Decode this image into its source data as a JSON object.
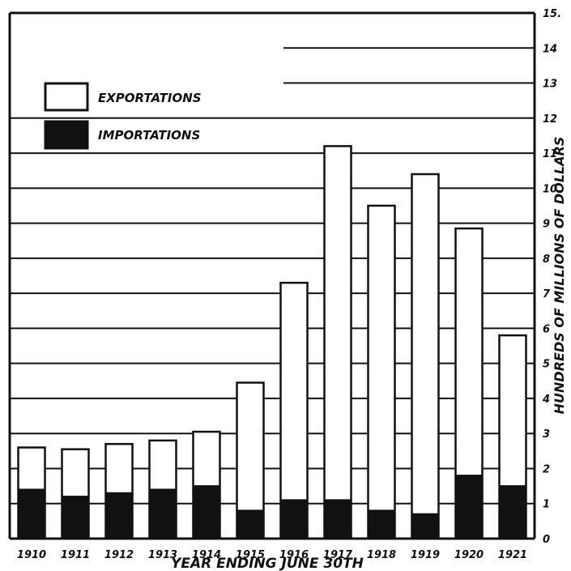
{
  "chart_data": {
    "type": "bar",
    "stacked": true,
    "categories": [
      "1910",
      "1911",
      "1912",
      "1913",
      "1914",
      "1915",
      "1916",
      "1917",
      "1918",
      "1919",
      "1920",
      "1921"
    ],
    "series": [
      {
        "name": "IMPORTATIONS",
        "values": [
          1.4,
          1.2,
          1.3,
          1.4,
          1.5,
          0.8,
          1.1,
          1.1,
          0.8,
          0.7,
          1.8,
          1.5
        ]
      },
      {
        "name": "EXPORTATIONS",
        "values": [
          2.6,
          2.55,
          2.7,
          2.8,
          3.05,
          4.45,
          7.3,
          11.2,
          9.5,
          10.4,
          8.85,
          5.8
        ]
      }
    ],
    "ylim": [
      0,
      15
    ],
    "yticks": [
      "0",
      "1",
      "2",
      "3",
      "4",
      "5",
      "6",
      "7",
      "8",
      "9",
      "10",
      "11",
      "12",
      "13",
      "14",
      "15."
    ],
    "xlabel": "YEAR ENDING JUNE 30TH",
    "ylabel": "HUNDREDS OF MILLIONS OF DOLLARS",
    "grid": true,
    "legend_position": "top-left",
    "colors": {
      "exportations": "#ffffff",
      "importations": "#111111",
      "ink": "#111111"
    }
  }
}
